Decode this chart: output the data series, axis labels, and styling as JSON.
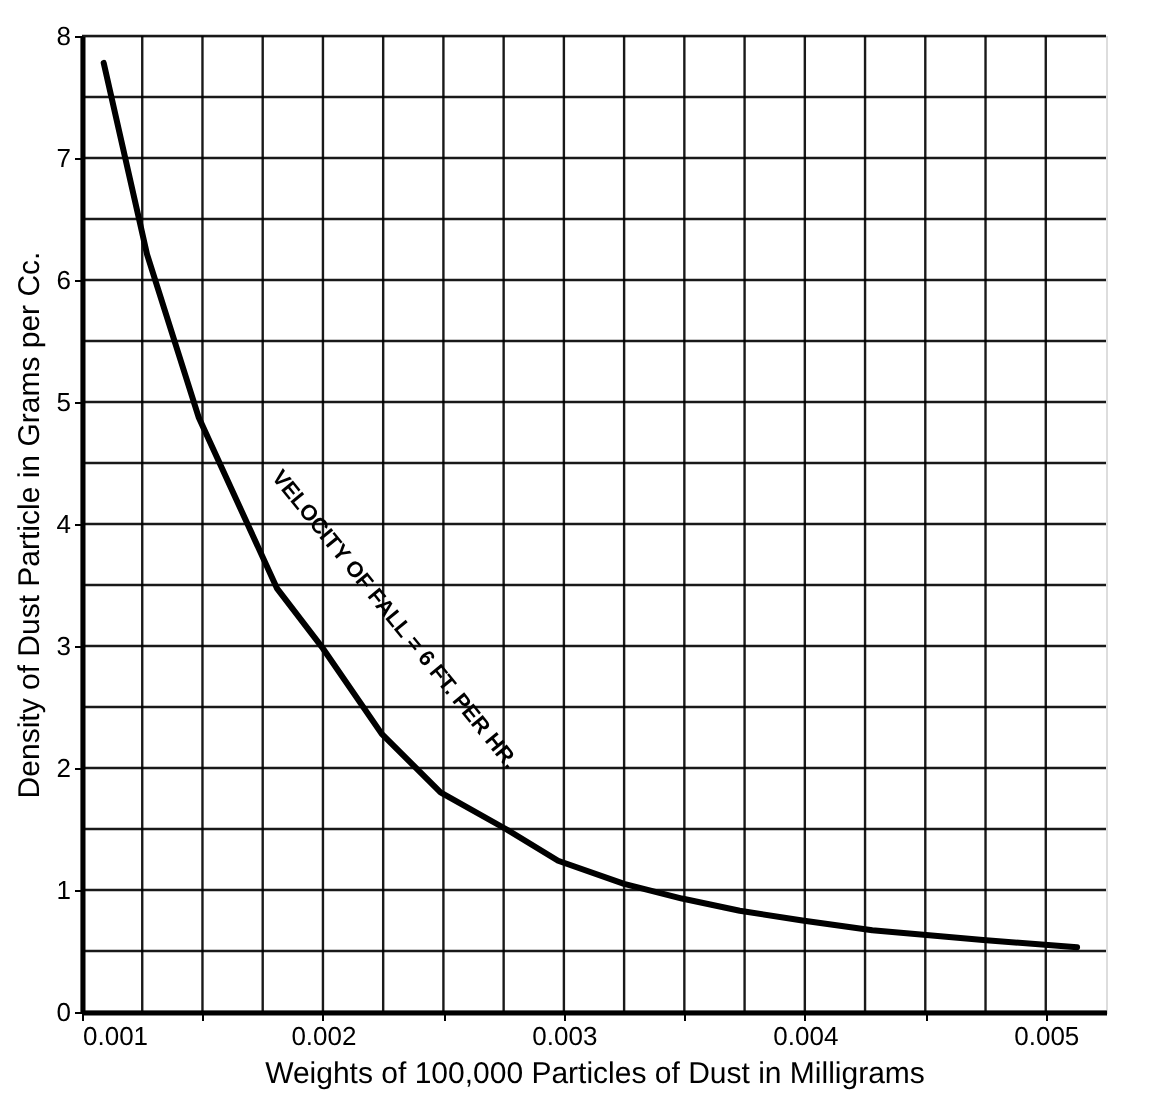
{
  "chart_data": {
    "type": "line",
    "xlabel": "Weights of 100,000 Particles of Dust in Milligrams",
    "ylabel": "Density of Dust Particle in Grams per Cc.",
    "x": [
      0.00109,
      0.00127,
      0.001485,
      0.00181,
      0.002,
      0.002244,
      0.002488,
      0.002759,
      0.002976,
      0.00325,
      0.00349,
      0.00373,
      0.00399,
      0.00428,
      0.00474,
      0.00513
    ],
    "series": [
      {
        "color": "#000000",
        "values": [
          7.78,
          6.21,
          4.87,
          3.47,
          2.98,
          2.28,
          1.8,
          1.5,
          1.24,
          1.05,
          0.93,
          0.83,
          0.75,
          0.67,
          0.59,
          0.53
        ]
      }
    ],
    "xlim": [
      0.001,
      0.00525
    ],
    "xticks": [
      {
        "value": 0.001,
        "label": "0.001"
      },
      {
        "value": 0.00125,
        "label": null
      },
      {
        "value": 0.0015,
        "label": null
      },
      {
        "value": 0.00175,
        "label": null
      },
      {
        "value": 0.002,
        "label": "0.002"
      },
      {
        "value": 0.00225,
        "label": null
      },
      {
        "value": 0.0025,
        "label": null
      },
      {
        "value": 0.00275,
        "label": null
      },
      {
        "value": 0.003,
        "label": "0.003"
      },
      {
        "value": 0.00325,
        "label": null
      },
      {
        "value": 0.0035,
        "label": null
      },
      {
        "value": 0.00375,
        "label": null
      },
      {
        "value": 0.004,
        "label": "0.004"
      },
      {
        "value": 0.00425,
        "label": null
      },
      {
        "value": 0.0045,
        "label": null
      },
      {
        "value": 0.00475,
        "label": null
      },
      {
        "value": 0.005,
        "label": "0.005"
      }
    ],
    "ylim": [
      0,
      8
    ],
    "yticks": [
      0,
      {
        "value": 0.5,
        "label": null
      },
      1,
      {
        "value": 1.5,
        "label": null
      },
      2,
      {
        "value": 2.5,
        "label": null
      },
      3,
      {
        "value": 3.5,
        "label": null
      },
      4,
      {
        "value": 4.5,
        "label": null
      },
      5,
      {
        "value": 5.5,
        "label": null
      },
      6,
      {
        "value": 6.5,
        "label": null
      },
      7,
      {
        "value": 7.5,
        "label": null
      },
      8
    ],
    "grid": true,
    "marker": "none",
    "line_style": "solid",
    "annotations": [
      "VELOCITY OF FALL = 6 FT. PER HR."
    ]
  }
}
